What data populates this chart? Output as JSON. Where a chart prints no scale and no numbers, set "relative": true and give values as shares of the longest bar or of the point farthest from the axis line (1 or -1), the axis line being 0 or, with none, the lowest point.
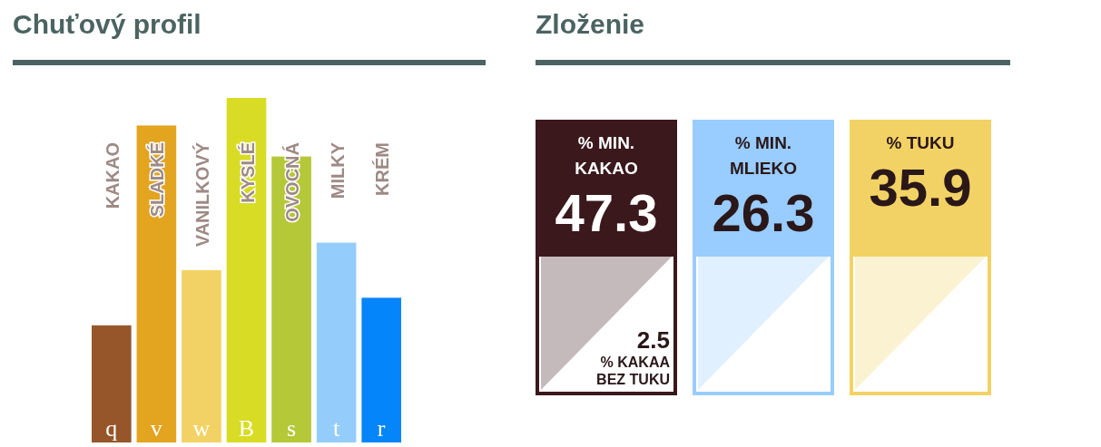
{
  "chart_data": [
    {
      "type": "bar",
      "title": "Chuťový profil",
      "relative": true,
      "categories": [
        "KAKAO",
        "SLADKÉ",
        "VANILKOVÝ",
        "KYSLÉ",
        "OVOCNÁ",
        "MILKY",
        "KRÉM"
      ],
      "values": [
        0.34,
        0.92,
        0.5,
        1,
        0.83,
        0.58,
        0.42
      ],
      "colors": [
        "#96562a",
        "#e3a41f",
        "#f2d264",
        "#d8dc24",
        "#b4c838",
        "#94cdfc",
        "#0485fa"
      ],
      "annotations": [
        "q",
        "v",
        "w",
        "B",
        "s",
        "t",
        "r"
      ]
    },
    {
      "type": "other",
      "title": "Zloženie",
      "categories": [
        "% MIN. KAKAO",
        "% MIN. MLIEKO",
        "% TUKU"
      ],
      "values": [
        47.3,
        26.3,
        35.9
      ],
      "colors": [
        "#3a181b",
        "#99ccff",
        "#f2d264"
      ],
      "data_labels": true,
      "annotations": [
        "2.5",
        "% KAKAA BEZ TUKU"
      ]
    }
  ]
}
